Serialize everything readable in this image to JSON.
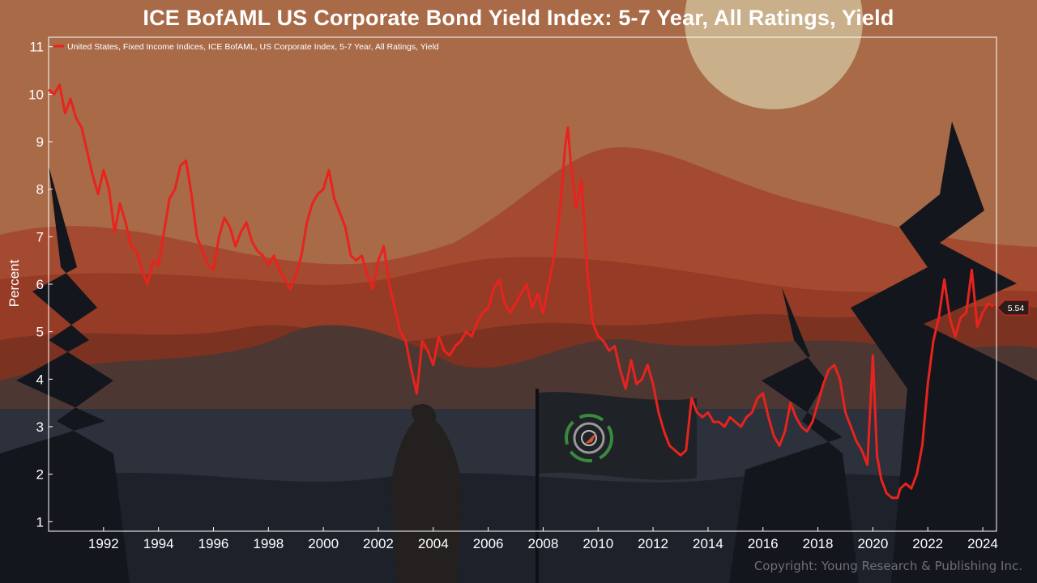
{
  "chart_data": {
    "type": "line",
    "title": "ICE BofAML US Corporate Bond Yield Index: 5-7 Year, All Ratings, Yield",
    "ylabel": "Percent",
    "xlabel": "",
    "ylim": [
      0.8,
      11.2
    ],
    "xlim": [
      1990.0,
      2024.5
    ],
    "y_ticks": [
      1,
      2,
      3,
      4,
      5,
      6,
      7,
      8,
      9,
      10,
      11
    ],
    "x_ticks": [
      1992,
      1994,
      1996,
      1998,
      2000,
      2002,
      2004,
      2006,
      2008,
      2010,
      2012,
      2014,
      2016,
      2018,
      2020,
      2022,
      2024
    ],
    "grid": false,
    "legend_position": "top-left",
    "series": [
      {
        "name": "United States, Fixed Income Indices, ICE BofAML, US Corporate Index, 5-7 Year, All Ratings, Yield",
        "color": "#e8231e",
        "last_value_label": "5.54",
        "x": [
          1990.0,
          1990.2,
          1990.4,
          1990.6,
          1990.8,
          1991.0,
          1991.2,
          1991.4,
          1991.6,
          1991.8,
          1992.0,
          1992.2,
          1992.4,
          1992.6,
          1992.8,
          1993.0,
          1993.2,
          1993.4,
          1993.6,
          1993.8,
          1994.0,
          1994.2,
          1994.4,
          1994.6,
          1994.8,
          1995.0,
          1995.2,
          1995.4,
          1995.6,
          1995.8,
          1996.0,
          1996.2,
          1996.4,
          1996.6,
          1996.8,
          1997.0,
          1997.2,
          1997.4,
          1997.6,
          1997.8,
          1998.0,
          1998.2,
          1998.4,
          1998.6,
          1998.8,
          1999.0,
          1999.2,
          1999.4,
          1999.6,
          1999.8,
          2000.0,
          2000.2,
          2000.4,
          2000.6,
          2000.8,
          2001.0,
          2001.2,
          2001.4,
          2001.6,
          2001.8,
          2002.0,
          2002.2,
          2002.4,
          2002.6,
          2002.8,
          2003.0,
          2003.2,
          2003.4,
          2003.6,
          2003.8,
          2004.0,
          2004.2,
          2004.4,
          2004.6,
          2004.8,
          2005.0,
          2005.2,
          2005.4,
          2005.6,
          2005.8,
          2006.0,
          2006.2,
          2006.4,
          2006.6,
          2006.8,
          2007.0,
          2007.2,
          2007.4,
          2007.6,
          2007.8,
          2008.0,
          2008.2,
          2008.4,
          2008.6,
          2008.8,
          2008.9,
          2009.0,
          2009.2,
          2009.4,
          2009.6,
          2009.8,
          2010.0,
          2010.2,
          2010.4,
          2010.6,
          2010.8,
          2011.0,
          2011.2,
          2011.4,
          2011.6,
          2011.8,
          2012.0,
          2012.2,
          2012.4,
          2012.6,
          2012.8,
          2013.0,
          2013.2,
          2013.4,
          2013.6,
          2013.8,
          2014.0,
          2014.2,
          2014.4,
          2014.6,
          2014.8,
          2015.0,
          2015.2,
          2015.4,
          2015.6,
          2015.8,
          2016.0,
          2016.2,
          2016.4,
          2016.6,
          2016.8,
          2017.0,
          2017.2,
          2017.4,
          2017.6,
          2017.8,
          2018.0,
          2018.2,
          2018.4,
          2018.6,
          2018.8,
          2019.0,
          2019.2,
          2019.4,
          2019.6,
          2019.8,
          2020.0,
          2020.15,
          2020.3,
          2020.5,
          2020.7,
          2020.9,
          2021.0,
          2021.2,
          2021.4,
          2021.6,
          2021.8,
          2022.0,
          2022.2,
          2022.4,
          2022.6,
          2022.8,
          2023.0,
          2023.2,
          2023.4,
          2023.6,
          2023.8,
          2024.0,
          2024.2,
          2024.4
        ],
        "y": [
          10.1,
          10.0,
          10.2,
          9.6,
          9.9,
          9.5,
          9.3,
          8.8,
          8.3,
          7.9,
          8.4,
          8.0,
          7.1,
          7.7,
          7.3,
          6.8,
          6.7,
          6.3,
          6.0,
          6.5,
          6.4,
          7.1,
          7.8,
          8.0,
          8.5,
          8.6,
          7.9,
          7.0,
          6.7,
          6.4,
          6.3,
          7.0,
          7.4,
          7.2,
          6.8,
          7.1,
          7.3,
          6.9,
          6.7,
          6.6,
          6.4,
          6.6,
          6.3,
          6.1,
          5.9,
          6.2,
          6.6,
          7.3,
          7.7,
          7.9,
          8.0,
          8.4,
          7.8,
          7.5,
          7.2,
          6.6,
          6.5,
          6.6,
          6.2,
          5.9,
          6.5,
          6.8,
          6.0,
          5.5,
          5.0,
          4.8,
          4.2,
          3.7,
          4.8,
          4.6,
          4.3,
          4.9,
          4.6,
          4.5,
          4.7,
          4.8,
          5.0,
          4.9,
          5.2,
          5.4,
          5.5,
          5.9,
          6.1,
          5.6,
          5.4,
          5.6,
          5.8,
          6.0,
          5.5,
          5.8,
          5.4,
          6.0,
          6.6,
          7.5,
          8.9,
          9.3,
          8.6,
          7.6,
          8.2,
          6.3,
          5.2,
          4.9,
          4.8,
          4.6,
          4.7,
          4.2,
          3.8,
          4.4,
          3.9,
          4.0,
          4.3,
          3.9,
          3.3,
          2.9,
          2.6,
          2.5,
          2.4,
          2.5,
          3.6,
          3.3,
          3.2,
          3.3,
          3.1,
          3.1,
          3.0,
          3.2,
          3.1,
          3.0,
          3.2,
          3.3,
          3.6,
          3.7,
          3.2,
          2.8,
          2.6,
          2.9,
          3.5,
          3.2,
          3.0,
          2.9,
          3.1,
          3.5,
          3.9,
          4.2,
          4.3,
          4.0,
          3.3,
          3.0,
          2.7,
          2.5,
          2.2,
          4.5,
          2.4,
          1.9,
          1.6,
          1.5,
          1.5,
          1.7,
          1.8,
          1.7,
          2.0,
          2.6,
          3.9,
          4.8,
          5.3,
          6.1,
          5.3,
          4.9,
          5.3,
          5.4,
          6.3,
          5.1,
          5.4,
          5.6,
          5.54
        ]
      }
    ]
  },
  "copyright": "Copyright: Young Research & Publishing Inc."
}
